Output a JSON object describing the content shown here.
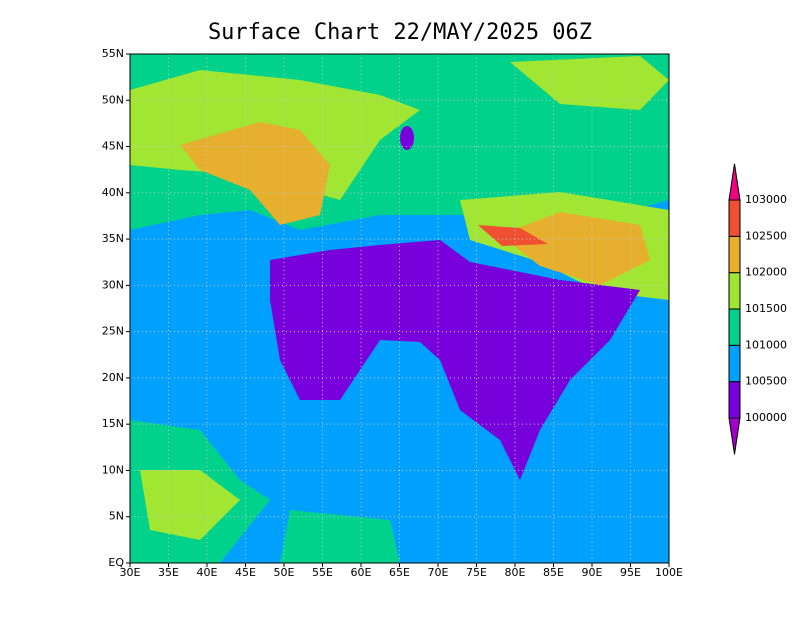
{
  "map": {
    "title": "Surface Chart 22/MAY/2025 06Z",
    "lon_range": [
      30,
      100
    ],
    "lat_range": [
      0,
      55
    ],
    "lon_ticks": [
      {
        "value": 30,
        "label": "30E"
      },
      {
        "value": 35,
        "label": "35E"
      },
      {
        "value": 40,
        "label": "40E"
      },
      {
        "value": 45,
        "label": "45E"
      },
      {
        "value": 50,
        "label": "50E"
      },
      {
        "value": 55,
        "label": "55E"
      },
      {
        "value": 60,
        "label": "60E"
      },
      {
        "value": 65,
        "label": "65E"
      },
      {
        "value": 70,
        "label": "70E"
      },
      {
        "value": 75,
        "label": "75E"
      },
      {
        "value": 80,
        "label": "80E"
      },
      {
        "value": 85,
        "label": "85E"
      },
      {
        "value": 90,
        "label": "90E"
      },
      {
        "value": 95,
        "label": "95E"
      },
      {
        "value": 100,
        "label": "100E"
      }
    ],
    "lat_ticks": [
      {
        "value": 0,
        "label": "EQ"
      },
      {
        "value": 5,
        "label": "5N"
      },
      {
        "value": 10,
        "label": "10N"
      },
      {
        "value": 15,
        "label": "15N"
      },
      {
        "value": 20,
        "label": "20N"
      },
      {
        "value": 25,
        "label": "25N"
      },
      {
        "value": 30,
        "label": "30N"
      },
      {
        "value": 35,
        "label": "35N"
      },
      {
        "value": 40,
        "label": "40N"
      },
      {
        "value": 45,
        "label": "45N"
      },
      {
        "value": 50,
        "label": "50N"
      },
      {
        "value": 55,
        "label": "55N"
      }
    ],
    "colorbar": {
      "levels": [
        100000,
        100500,
        101000,
        101500,
        102000,
        102500,
        103000
      ],
      "colors": [
        "#a000c8",
        "#7800dc",
        "#00a0ff",
        "#00d28c",
        "#a0e632",
        "#e6af2d",
        "#f05032",
        "#f00082"
      ]
    }
  }
}
